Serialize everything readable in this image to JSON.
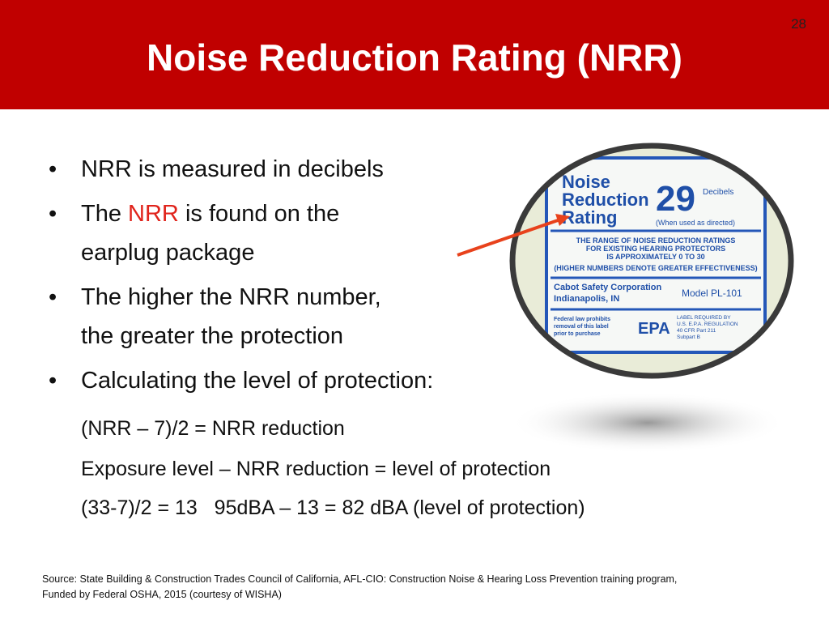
{
  "header": {
    "page_number": "28",
    "title": "Noise Reduction Rating (NRR)"
  },
  "bullets": [
    {
      "text": "NRR is measured in decibels"
    },
    {
      "before": "The",
      "highlight": "NRR",
      "after": "is found on the",
      "continuation": "earplug package"
    },
    {
      "text": "The higher the NRR number,",
      "continuation": "the greater the protection"
    },
    {
      "text": "Calculating the level of protection:"
    }
  ],
  "formulas": [
    "(NRR – 7)/2 = NRR reduction",
    "Exposure level – NRR reduction = level of protection",
    "(33-7)/2 = 13   95dBA – 13 = 82 dBA (level of protection)"
  ],
  "label": {
    "heading": [
      "Noise",
      "Reduction",
      "Rating"
    ],
    "rating": "29",
    "unit": "Decibels",
    "note": "(When used as directed)",
    "range_text": [
      "THE RANGE OF NOISE REDUCTION RATINGS",
      "FOR EXISTING HEARING PROTECTORS",
      "IS APPROXIMATELY 0 TO 30",
      "(HIGHER NUMBERS DENOTE GREATER EFFECTIVENESS)"
    ],
    "company": [
      "Cabot Safety Corporation",
      "Indianapolis, IN"
    ],
    "model": "Model PL-101",
    "federal": [
      "Federal law prohibits",
      "removal of this label",
      "prior to purchase"
    ],
    "epa": "EPA",
    "regulation": [
      "LABEL REQUIRED BY",
      "U.S. E.P.A. REGULATION",
      "40 CFR Part 211",
      "Subpart B"
    ]
  },
  "source": [
    "Source: State Building & Construction Trades Council of California, AFL-CIO:  Construction Noise & Hearing Loss Prevention training program,",
    "Funded by Federal OSHA, 2015 (courtesy of WISHA)"
  ]
}
